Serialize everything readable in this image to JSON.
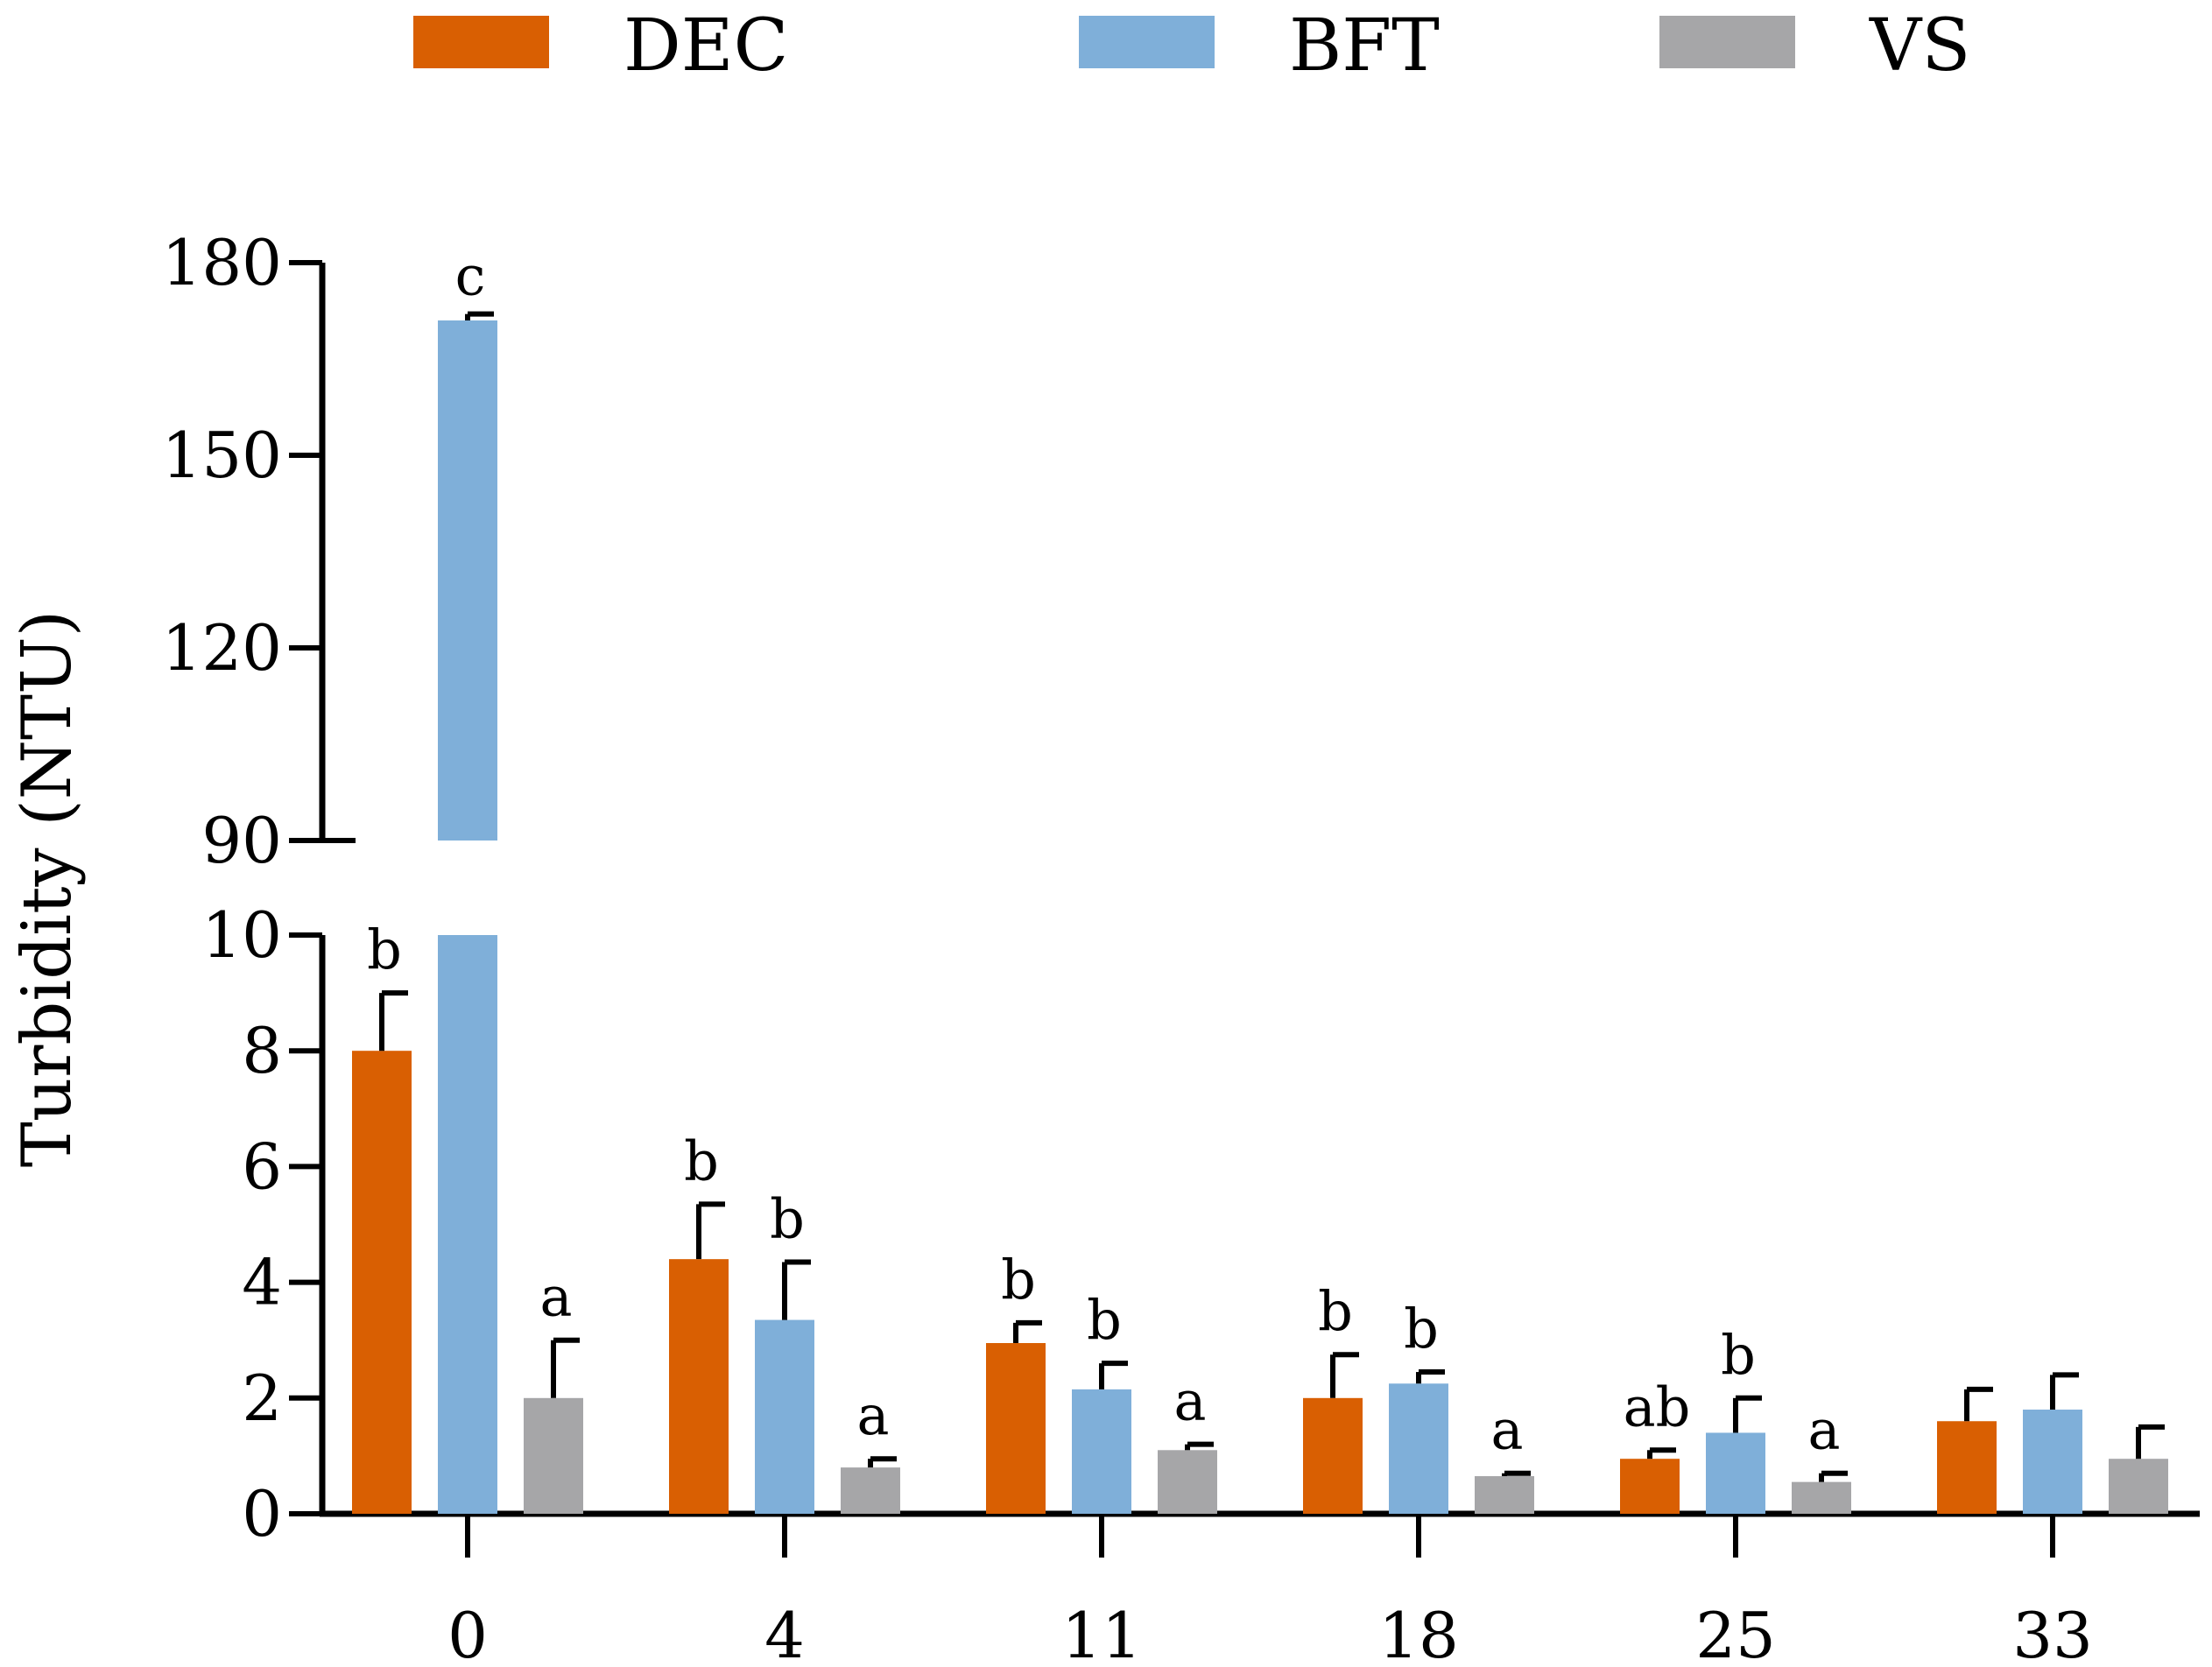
{
  "chart_data": {
    "type": "bar",
    "title": "",
    "xlabel": "",
    "ylabel": "Turbidity (NTU)",
    "categories": [
      "0",
      "4",
      "11",
      "18",
      "25",
      "33"
    ],
    "series": [
      {
        "name": "DEC",
        "color": "#d95f02",
        "values": [
          8.0,
          4.4,
          2.95,
          2.0,
          0.95,
          1.6
        ],
        "errors": [
          1.0,
          0.95,
          0.35,
          0.75,
          0.15,
          0.55
        ],
        "letters": [
          "b",
          "b",
          "b",
          "b",
          "ab",
          ""
        ]
      },
      {
        "name": "BFT",
        "color": "#7fafd9",
        "values": [
          171.0,
          3.35,
          2.15,
          2.25,
          1.4,
          1.8
        ],
        "errors": [
          1.0,
          1.0,
          0.45,
          0.2,
          0.6,
          0.6
        ],
        "letters": [
          "c",
          "b",
          "b",
          "b",
          "b",
          ""
        ]
      },
      {
        "name": "VS",
        "color": "#a6a6a8",
        "values": [
          2.0,
          0.8,
          1.1,
          0.65,
          0.55,
          0.95
        ],
        "errors": [
          1.0,
          0.15,
          0.1,
          0.05,
          0.15,
          0.55
        ],
        "letters": [
          "a",
          "a",
          "a",
          "a",
          "a",
          ""
        ]
      }
    ],
    "y_axis_break": {
      "lower_range": [
        0,
        10
      ],
      "upper_range": [
        90,
        180
      ],
      "lower_ticks": [
        0,
        2,
        4,
        6,
        8,
        10
      ],
      "upper_ticks": [
        90,
        120,
        150,
        180
      ]
    },
    "legend": {
      "position": "top",
      "orientation": "horizontal"
    },
    "grid": false
  }
}
